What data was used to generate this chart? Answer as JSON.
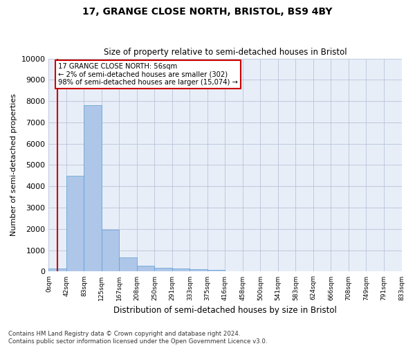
{
  "title1": "17, GRANGE CLOSE NORTH, BRISTOL, BS9 4BY",
  "title2": "Size of property relative to semi-detached houses in Bristol",
  "xlabel": "Distribution of semi-detached houses by size in Bristol",
  "ylabel": "Number of semi-detached properties",
  "bar_values": [
    150,
    4500,
    7800,
    1950,
    650,
    290,
    175,
    130,
    100,
    80,
    0,
    0,
    0,
    0,
    0,
    0,
    0,
    0,
    0,
    0
  ],
  "x_labels": [
    "0sqm",
    "42sqm",
    "83sqm",
    "125sqm",
    "167sqm",
    "208sqm",
    "250sqm",
    "291sqm",
    "333sqm",
    "375sqm",
    "416sqm",
    "458sqm",
    "500sqm",
    "541sqm",
    "583sqm",
    "624sqm",
    "666sqm",
    "708sqm",
    "749sqm",
    "791sqm",
    "833sqm"
  ],
  "bar_color": "#aec6e8",
  "bar_edge_color": "#5a9fd4",
  "vline_x": 0.5,
  "vline_color": "#cc0000",
  "annotation_box_color": "#cc0000",
  "annotation_text_line1": "17 GRANGE CLOSE NORTH: 56sqm",
  "annotation_text_line2": "← 2% of semi-detached houses are smaller (302)",
  "annotation_text_line3": "98% of semi-detached houses are larger (15,074) →",
  "ylim": [
    0,
    10000
  ],
  "yticks": [
    0,
    1000,
    2000,
    3000,
    4000,
    5000,
    6000,
    7000,
    8000,
    9000,
    10000
  ],
  "footnote": "Contains HM Land Registry data © Crown copyright and database right 2024.\nContains public sector information licensed under the Open Government Licence v3.0.",
  "background_color": "#e8eef8",
  "grid_color": "#b8c4d8",
  "figsize": [
    6.0,
    5.0
  ],
  "dpi": 100
}
